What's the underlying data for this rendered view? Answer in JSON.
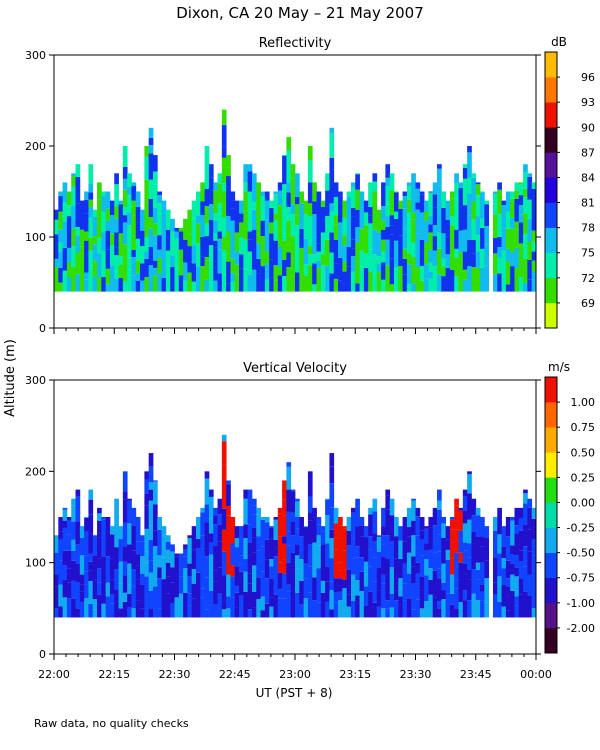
{
  "title": "Dixon, CA 20 May – 21 May 2007",
  "ylabel": "Altitude (m)",
  "footnote": "Raw data, no quality checks",
  "chart_data": [
    {
      "type": "heatmap",
      "title": "Reflectivity",
      "units_label": "dB",
      "ylim": [
        0,
        300
      ],
      "yticks": [
        "0",
        "100",
        "200",
        "300"
      ],
      "colorbar_ticks": [
        "69",
        "72",
        "75",
        "78",
        "81",
        "84",
        "87",
        "90",
        "93",
        "96"
      ],
      "colorbar_colors": [
        "#ccff00",
        "#33dd00",
        "#00eeaa",
        "#11bbee",
        "#1144ff",
        "#2200dd",
        "#551199",
        "#330022",
        "#ee1100",
        "#ff7700",
        "#ffbb00"
      ],
      "dominant_colors": [
        "#1133ee",
        "#11bbee",
        "#00eeaa",
        "#33dd00"
      ],
      "fill_bottom_m": 40,
      "envelope_m": [
        130,
        150,
        160,
        150,
        170,
        180,
        140,
        150,
        180,
        130,
        160,
        150,
        150,
        140,
        170,
        140,
        200,
        170,
        160,
        150,
        130,
        200,
        220,
        190,
        150,
        140,
        130,
        120,
        110,
        110,
        120,
        130,
        140,
        150,
        160,
        200,
        180,
        160,
        170,
        240,
        190,
        150,
        140,
        140,
        180,
        180,
        170,
        160,
        150,
        150,
        140,
        150,
        160,
        190,
        210,
        180,
        170,
        150,
        140,
        200,
        160,
        150,
        140,
        170,
        220,
        160,
        150,
        140,
        150,
        160,
        170,
        150,
        140,
        160,
        170,
        130,
        160,
        180,
        170,
        150,
        140,
        150,
        160,
        170,
        160,
        150,
        140,
        150,
        160,
        180,
        150,
        140,
        150,
        170,
        160,
        180,
        200,
        170,
        160,
        150,
        140,
        130,
        150,
        160,
        140,
        150,
        150,
        160,
        160,
        180,
        170,
        160
      ]
    },
    {
      "type": "heatmap",
      "title": "Vertical Velocity",
      "units_label": "m/s",
      "ylim": [
        0,
        300
      ],
      "yticks": [
        "0",
        "100",
        "200",
        "300"
      ],
      "colorbar_ticks": [
        "-2.00",
        "-1.00",
        "-0.75",
        "-0.50",
        "-0.25",
        "0.00",
        "0.25",
        "0.50",
        "0.75",
        "1.00"
      ],
      "colorbar_colors": [
        "#330022",
        "#551188",
        "#2211cc",
        "#1144ff",
        "#11aaee",
        "#00ddaa",
        "#22dd11",
        "#ffee00",
        "#ffaa00",
        "#ff6600",
        "#ee1100"
      ],
      "dominant_colors": [
        "#2211cc",
        "#1144ff",
        "#2211cc",
        "#11aaee",
        "#1144ff",
        "#00ddaa",
        "#ffee00",
        "#ffaa00",
        "#ee1100"
      ],
      "fill_bottom_m": 40,
      "envelope_m": [
        130,
        150,
        160,
        150,
        170,
        180,
        140,
        150,
        180,
        130,
        160,
        150,
        150,
        140,
        170,
        140,
        200,
        170,
        160,
        150,
        130,
        200,
        220,
        190,
        150,
        140,
        130,
        120,
        110,
        110,
        120,
        130,
        140,
        150,
        160,
        200,
        180,
        160,
        170,
        240,
        190,
        150,
        140,
        140,
        180,
        180,
        170,
        160,
        150,
        150,
        140,
        150,
        160,
        190,
        210,
        180,
        170,
        150,
        140,
        200,
        160,
        150,
        140,
        170,
        220,
        160,
        150,
        140,
        150,
        160,
        170,
        150,
        140,
        160,
        170,
        130,
        160,
        180,
        170,
        150,
        140,
        150,
        160,
        170,
        160,
        150,
        140,
        150,
        160,
        180,
        150,
        140,
        150,
        170,
        160,
        180,
        200,
        170,
        160,
        150,
        140,
        130,
        150,
        160,
        140,
        150,
        150,
        160,
        160,
        180,
        170,
        160
      ],
      "updraft_bands": [
        [
          0.34,
          0.37
        ],
        [
          0.46,
          0.48
        ],
        [
          0.58,
          0.6
        ],
        [
          0.82,
          0.84
        ]
      ]
    }
  ],
  "xaxis": {
    "label": "UT  (PST + 8)",
    "ticks": [
      "22:00",
      "22:15",
      "22:30",
      "22:45",
      "23:00",
      "23:15",
      "23:30",
      "23:45",
      "00:00"
    ],
    "gaps": [
      [
        0.895,
        0.905
      ]
    ]
  }
}
